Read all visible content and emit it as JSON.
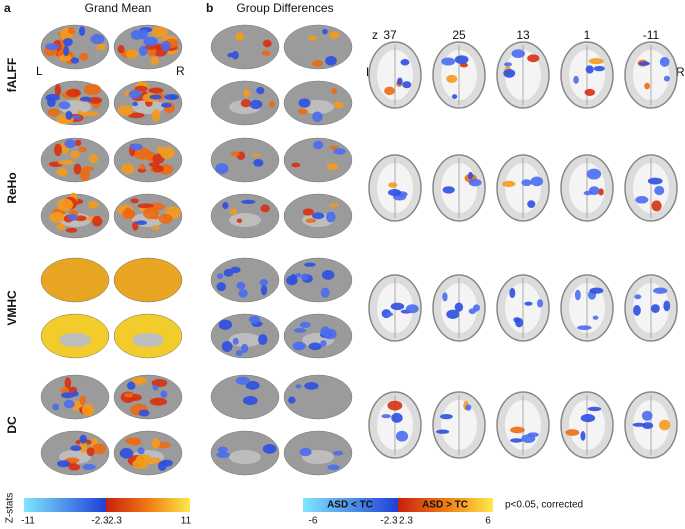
{
  "panels": [
    {
      "label": "a",
      "title": "Grand Mean"
    },
    {
      "label": "b",
      "title": "Group Differences"
    }
  ],
  "rows": [
    "fALFF",
    "ReHo",
    "VMHC",
    "DC"
  ],
  "hemisphere_labels": {
    "left": "L",
    "right": "R"
  },
  "slices": {
    "prefix": "z",
    "values": [
      "37",
      "25",
      "13",
      "1",
      "-11"
    ]
  },
  "slice_labels": {
    "left": "L",
    "right": "R"
  },
  "colorbar_a": {
    "title": "Z-stats",
    "ticks": [
      "-11",
      "-2.3",
      "2.3",
      "11"
    ]
  },
  "colorbar_b": {
    "negative_label": "ASD < TC",
    "positive_label": "ASD > TC",
    "ticks": [
      "-6",
      "-2.3",
      "2.3",
      "6"
    ],
    "note": "p<0.05, corrected"
  }
}
